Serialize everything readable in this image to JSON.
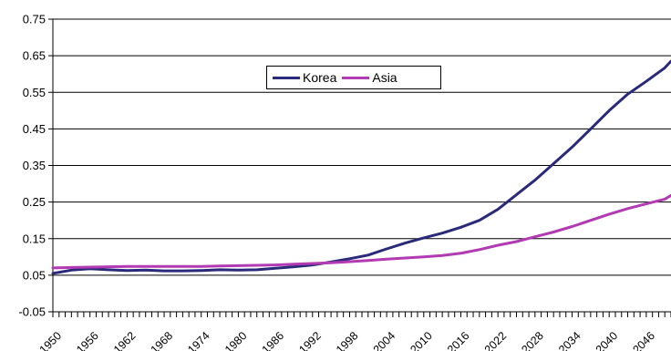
{
  "chart_data": {
    "type": "line",
    "title": "",
    "xlabel": "",
    "ylabel": "",
    "xlim": [
      1950,
      2050
    ],
    "ylim": [
      -0.05,
      0.75
    ],
    "y_ticks": [
      "-0.05",
      "0.05",
      "0.15",
      "0.25",
      "0.35",
      "0.45",
      "0.55",
      "0.65",
      "0.75"
    ],
    "x_ticks": [
      "1950",
      "1956",
      "1962",
      "1968",
      "1974",
      "1980",
      "1986",
      "1992",
      "1998",
      "2004",
      "2010",
      "2016",
      "2022",
      "2028",
      "2034",
      "2040",
      "2046"
    ],
    "grid": "horizontal",
    "legend_position": "top-center",
    "series": [
      {
        "name": "Korea",
        "color": "#2a2a7a",
        "x": [
          1950,
          1953,
          1956,
          1959,
          1962,
          1965,
          1968,
          1971,
          1974,
          1977,
          1980,
          1983,
          1986,
          1989,
          1992,
          1995,
          1998,
          2001,
          2004,
          2007,
          2010,
          2013,
          2016,
          2019,
          2022,
          2025,
          2028,
          2031,
          2034,
          2037,
          2040,
          2043,
          2046,
          2049,
          2050
        ],
        "values": [
          0.055,
          0.064,
          0.068,
          0.065,
          0.063,
          0.064,
          0.062,
          0.062,
          0.063,
          0.065,
          0.064,
          0.065,
          0.069,
          0.073,
          0.078,
          0.086,
          0.095,
          0.105,
          0.122,
          0.138,
          0.152,
          0.165,
          0.181,
          0.2,
          0.23,
          0.27,
          0.31,
          0.355,
          0.4,
          0.45,
          0.5,
          0.545,
          0.58,
          0.617,
          0.635
        ]
      },
      {
        "name": "Asia",
        "color": "#b23ab2",
        "x": [
          1950,
          1953,
          1956,
          1959,
          1962,
          1965,
          1968,
          1971,
          1974,
          1977,
          1980,
          1983,
          1986,
          1989,
          1992,
          1995,
          1998,
          2001,
          2004,
          2007,
          2010,
          2013,
          2016,
          2019,
          2022,
          2025,
          2028,
          2031,
          2034,
          2037,
          2040,
          2043,
          2046,
          2049,
          2050
        ],
        "values": [
          0.07,
          0.071,
          0.072,
          0.073,
          0.074,
          0.074,
          0.074,
          0.074,
          0.074,
          0.075,
          0.076,
          0.077,
          0.078,
          0.08,
          0.082,
          0.084,
          0.087,
          0.09,
          0.094,
          0.097,
          0.1,
          0.104,
          0.11,
          0.12,
          0.132,
          0.142,
          0.155,
          0.168,
          0.183,
          0.2,
          0.217,
          0.232,
          0.245,
          0.258,
          0.268
        ]
      }
    ]
  }
}
